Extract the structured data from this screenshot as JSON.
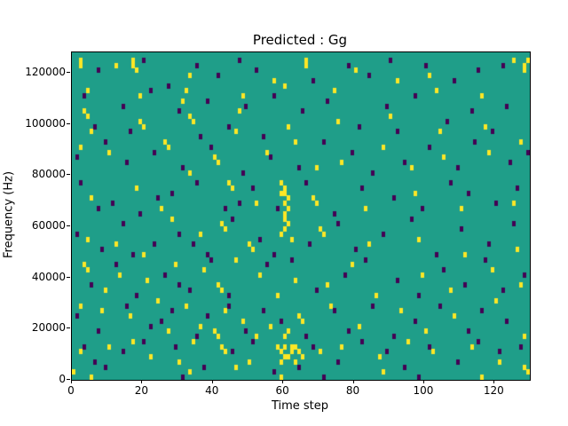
{
  "chart_data": {
    "type": "heatmap",
    "title": "Predicted : Gg",
    "xlabel": "Time step",
    "ylabel": "Frequency (Hz)",
    "xlim": [
      0,
      130
    ],
    "ylim": [
      0,
      128000
    ],
    "x_ticks": [
      0,
      20,
      40,
      60,
      80,
      100,
      120
    ],
    "y_ticks": [
      0,
      20000,
      40000,
      60000,
      80000,
      100000,
      120000
    ],
    "grid": {
      "cols": 130,
      "rows": 64,
      "hz_per_row": 2000
    },
    "legend": "none",
    "colors": {
      "background": "#1f9e89",
      "high": "#fde725",
      "low": "#440154"
    },
    "cells_high": [
      [
        2,
        62
      ],
      [
        2,
        61
      ],
      [
        12,
        61
      ],
      [
        17,
        62
      ],
      [
        17,
        61
      ],
      [
        18,
        60
      ],
      [
        66,
        62
      ],
      [
        66,
        61
      ],
      [
        80,
        60
      ],
      [
        101,
        59
      ],
      [
        125,
        62
      ],
      [
        128,
        61
      ],
      [
        128,
        60
      ],
      [
        33,
        59
      ],
      [
        57,
        58
      ],
      [
        92,
        58
      ],
      [
        4,
        56
      ],
      [
        19,
        55
      ],
      [
        32,
        56
      ],
      [
        48,
        55
      ],
      [
        60,
        57
      ],
      [
        74,
        56
      ],
      [
        103,
        56
      ],
      [
        116,
        55
      ],
      [
        31,
        54
      ],
      [
        3,
        52
      ],
      [
        4,
        51
      ],
      [
        19,
        50
      ],
      [
        20,
        49
      ],
      [
        33,
        51
      ],
      [
        34,
        50
      ],
      [
        47,
        52
      ],
      [
        61,
        49
      ],
      [
        75,
        50
      ],
      [
        90,
        51
      ],
      [
        104,
        48
      ],
      [
        117,
        49
      ],
      [
        5,
        48
      ],
      [
        46,
        48
      ],
      [
        2,
        45
      ],
      [
        10,
        44
      ],
      [
        26,
        46
      ],
      [
        27,
        45
      ],
      [
        40,
        43
      ],
      [
        41,
        42
      ],
      [
        55,
        44
      ],
      [
        63,
        46
      ],
      [
        76,
        42
      ],
      [
        88,
        45
      ],
      [
        96,
        41
      ],
      [
        105,
        43
      ],
      [
        118,
        44
      ],
      [
        127,
        46
      ],
      [
        33,
        40
      ],
      [
        69,
        41
      ],
      [
        59,
        38
      ],
      [
        60,
        37
      ],
      [
        60,
        36
      ],
      [
        61,
        35
      ],
      [
        60,
        34
      ],
      [
        61,
        33
      ],
      [
        60,
        32
      ],
      [
        59,
        36
      ],
      [
        44,
        38
      ],
      [
        45,
        37
      ],
      [
        52,
        34
      ],
      [
        68,
        35
      ],
      [
        69,
        34
      ],
      [
        83,
        33
      ],
      [
        97,
        36
      ],
      [
        110,
        33
      ],
      [
        125,
        34
      ],
      [
        18,
        37
      ],
      [
        25,
        33
      ],
      [
        5,
        35
      ],
      [
        60,
        31
      ],
      [
        61,
        30
      ],
      [
        60,
        29
      ],
      [
        59,
        28
      ],
      [
        62,
        27
      ],
      [
        42,
        30
      ],
      [
        43,
        29
      ],
      [
        50,
        26
      ],
      [
        51,
        25
      ],
      [
        36,
        28
      ],
      [
        70,
        29
      ],
      [
        71,
        28
      ],
      [
        84,
        26
      ],
      [
        98,
        27
      ],
      [
        111,
        24
      ],
      [
        126,
        25
      ],
      [
        12,
        26
      ],
      [
        20,
        24
      ],
      [
        28,
        31
      ],
      [
        4,
        27
      ],
      [
        3,
        22
      ],
      [
        4,
        21
      ],
      [
        13,
        20
      ],
      [
        21,
        19
      ],
      [
        29,
        22
      ],
      [
        37,
        21
      ],
      [
        41,
        18
      ],
      [
        42,
        17
      ],
      [
        53,
        20
      ],
      [
        58,
        16
      ],
      [
        63,
        19
      ],
      [
        72,
        18
      ],
      [
        79,
        22
      ],
      [
        86,
        16
      ],
      [
        99,
        20
      ],
      [
        107,
        17
      ],
      [
        119,
        21
      ],
      [
        127,
        18
      ],
      [
        46,
        23
      ],
      [
        9,
        17
      ],
      [
        2,
        14
      ],
      [
        8,
        13
      ],
      [
        16,
        12
      ],
      [
        24,
        15
      ],
      [
        32,
        14
      ],
      [
        40,
        9
      ],
      [
        41,
        8
      ],
      [
        43,
        13
      ],
      [
        48,
        11
      ],
      [
        56,
        10
      ],
      [
        60,
        8
      ],
      [
        61,
        9
      ],
      [
        64,
        12
      ],
      [
        65,
        11
      ],
      [
        73,
        14
      ],
      [
        81,
        10
      ],
      [
        93,
        13
      ],
      [
        100,
        9
      ],
      [
        108,
        12
      ],
      [
        120,
        15
      ],
      [
        128,
        8
      ],
      [
        36,
        10
      ],
      [
        52,
        8
      ],
      [
        27,
        9
      ],
      [
        58,
        6
      ],
      [
        59,
        5
      ],
      [
        60,
        4
      ],
      [
        61,
        4
      ],
      [
        62,
        5
      ],
      [
        63,
        6
      ],
      [
        64,
        5
      ],
      [
        65,
        4
      ],
      [
        60,
        6
      ],
      [
        62,
        6
      ],
      [
        59,
        3
      ],
      [
        63,
        3
      ],
      [
        2,
        5
      ],
      [
        10,
        6
      ],
      [
        22,
        4
      ],
      [
        34,
        7
      ],
      [
        42,
        6
      ],
      [
        43,
        5
      ],
      [
        50,
        3
      ],
      [
        70,
        5
      ],
      [
        76,
        6
      ],
      [
        87,
        4
      ],
      [
        95,
        7
      ],
      [
        102,
        5
      ],
      [
        113,
        6
      ],
      [
        121,
        3
      ],
      [
        128,
        2
      ],
      [
        46,
        2
      ],
      [
        17,
        7
      ],
      [
        30,
        3
      ],
      [
        0,
        1
      ],
      [
        5,
        0
      ],
      [
        33,
        1
      ],
      [
        59,
        0
      ],
      [
        88,
        1
      ],
      [
        116,
        0
      ],
      [
        129,
        1
      ],
      [
        129,
        62
      ]
    ],
    "cells_low": [
      [
        20,
        62
      ],
      [
        35,
        61
      ],
      [
        47,
        62
      ],
      [
        52,
        60
      ],
      [
        78,
        61
      ],
      [
        90,
        62
      ],
      [
        100,
        61
      ],
      [
        115,
        60
      ],
      [
        122,
        61
      ],
      [
        7,
        60
      ],
      [
        41,
        59
      ],
      [
        68,
        58
      ],
      [
        84,
        59
      ],
      [
        108,
        58
      ],
      [
        27,
        57
      ],
      [
        3,
        55
      ],
      [
        14,
        53
      ],
      [
        22,
        56
      ],
      [
        30,
        52
      ],
      [
        38,
        54
      ],
      [
        49,
        53
      ],
      [
        57,
        55
      ],
      [
        65,
        52
      ],
      [
        72,
        54
      ],
      [
        81,
        49
      ],
      [
        89,
        53
      ],
      [
        97,
        55
      ],
      [
        106,
        50
      ],
      [
        113,
        52
      ],
      [
        123,
        53
      ],
      [
        6,
        49
      ],
      [
        16,
        48
      ],
      [
        44,
        49
      ],
      [
        92,
        48
      ],
      [
        119,
        48
      ],
      [
        1,
        43
      ],
      [
        9,
        46
      ],
      [
        15,
        42
      ],
      [
        23,
        44
      ],
      [
        31,
        41
      ],
      [
        39,
        45
      ],
      [
        48,
        40
      ],
      [
        56,
        43
      ],
      [
        64,
        41
      ],
      [
        71,
        46
      ],
      [
        79,
        44
      ],
      [
        85,
        40
      ],
      [
        94,
        42
      ],
      [
        101,
        45
      ],
      [
        109,
        41
      ],
      [
        114,
        46
      ],
      [
        124,
        42
      ],
      [
        129,
        44
      ],
      [
        36,
        47
      ],
      [
        54,
        47
      ],
      [
        2,
        38
      ],
      [
        11,
        34
      ],
      [
        19,
        32
      ],
      [
        28,
        36
      ],
      [
        35,
        38
      ],
      [
        43,
        33
      ],
      [
        51,
        37
      ],
      [
        58,
        33
      ],
      [
        66,
        38
      ],
      [
        74,
        32
      ],
      [
        82,
        37
      ],
      [
        91,
        35
      ],
      [
        99,
        33
      ],
      [
        107,
        38
      ],
      [
        112,
        36
      ],
      [
        120,
        34
      ],
      [
        126,
        37
      ],
      [
        7,
        33
      ],
      [
        24,
        35
      ],
      [
        47,
        34
      ],
      [
        1,
        28
      ],
      [
        8,
        25
      ],
      [
        14,
        30
      ],
      [
        23,
        26
      ],
      [
        30,
        28
      ],
      [
        38,
        24
      ],
      [
        45,
        31
      ],
      [
        53,
        27
      ],
      [
        57,
        24
      ],
      [
        67,
        26
      ],
      [
        75,
        30
      ],
      [
        80,
        25
      ],
      [
        88,
        28
      ],
      [
        96,
        31
      ],
      [
        103,
        24
      ],
      [
        110,
        29
      ],
      [
        118,
        26
      ],
      [
        125,
        30
      ],
      [
        17,
        24
      ],
      [
        34,
        26
      ],
      [
        5,
        18
      ],
      [
        12,
        22
      ],
      [
        18,
        16
      ],
      [
        26,
        20
      ],
      [
        33,
        17
      ],
      [
        39,
        23
      ],
      [
        44,
        16
      ],
      [
        55,
        22
      ],
      [
        62,
        23
      ],
      [
        69,
        17
      ],
      [
        77,
        20
      ],
      [
        83,
        23
      ],
      [
        92,
        19
      ],
      [
        98,
        16
      ],
      [
        105,
        21
      ],
      [
        111,
        18
      ],
      [
        117,
        23
      ],
      [
        122,
        17
      ],
      [
        128,
        20
      ],
      [
        30,
        18
      ],
      [
        1,
        12
      ],
      [
        7,
        9
      ],
      [
        15,
        14
      ],
      [
        22,
        10
      ],
      [
        28,
        13
      ],
      [
        35,
        8
      ],
      [
        44,
        14
      ],
      [
        49,
        9
      ],
      [
        54,
        13
      ],
      [
        59,
        11
      ],
      [
        66,
        8
      ],
      [
        74,
        13
      ],
      [
        78,
        9
      ],
      [
        85,
        14
      ],
      [
        91,
        8
      ],
      [
        97,
        11
      ],
      [
        104,
        14
      ],
      [
        112,
        9
      ],
      [
        116,
        13
      ],
      [
        123,
        11
      ],
      [
        25,
        11
      ],
      [
        38,
        12
      ],
      [
        3,
        6
      ],
      [
        9,
        2
      ],
      [
        14,
        5
      ],
      [
        20,
        7
      ],
      [
        29,
        6
      ],
      [
        37,
        2
      ],
      [
        45,
        5
      ],
      [
        51,
        7
      ],
      [
        57,
        1
      ],
      [
        64,
        2
      ],
      [
        68,
        6
      ],
      [
        75,
        3
      ],
      [
        82,
        7
      ],
      [
        89,
        5
      ],
      [
        94,
        2
      ],
      [
        101,
        6
      ],
      [
        109,
        3
      ],
      [
        115,
        7
      ],
      [
        121,
        5
      ],
      [
        127,
        6
      ],
      [
        6,
        3
      ],
      [
        31,
        0
      ],
      [
        71,
        0
      ],
      [
        98,
        0
      ]
    ]
  }
}
